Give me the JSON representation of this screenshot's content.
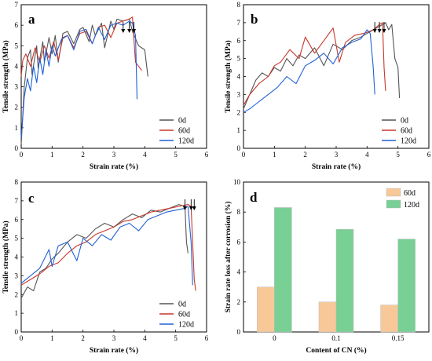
{
  "colors": {
    "0d": "#555555",
    "60d": "#c8372b",
    "120d": "#2060d8",
    "bar_60d": "#f8c898",
    "bar_120d": "#78d094"
  },
  "chart_data": [
    {
      "panel": "a",
      "type": "line",
      "xlabel": "Strain rate (%)",
      "ylabel": "Tensile strength (MPa)",
      "xlim": [
        0,
        6
      ],
      "ylim": [
        0,
        7
      ],
      "xticks": [
        "0",
        "1",
        "2",
        "3",
        "4",
        "5",
        "6"
      ],
      "yticks": [
        "0",
        "1",
        "2",
        "3",
        "4",
        "5",
        "6",
        "7"
      ],
      "legend_position": "bottom-right",
      "arrows_at_x": [
        3.3,
        3.5,
        3.65
      ],
      "series": [
        {
          "name": "0d",
          "x": [
            0,
            0.1,
            0.2,
            0.3,
            0.35,
            0.5,
            0.55,
            0.7,
            0.75,
            0.9,
            1.0,
            1.1,
            1.2,
            1.35,
            1.5,
            1.7,
            1.9,
            2.0,
            2.2,
            2.3,
            2.4,
            2.6,
            2.7,
            2.9,
            3.0,
            3.1,
            3.3,
            3.5,
            3.6,
            3.8,
            4.0,
            4.1
          ],
          "y": [
            0.2,
            3.0,
            4.4,
            4.8,
            3.6,
            5.0,
            3.9,
            5.2,
            4.2,
            5.4,
            4.6,
            5.5,
            4.2,
            5.6,
            5.7,
            5.1,
            5.8,
            5.9,
            5.2,
            6.0,
            5.5,
            6.1,
            4.9,
            6.2,
            5.8,
            6.3,
            6.2,
            6.3,
            5.7,
            5.0,
            4.8,
            3.5
          ]
        },
        {
          "name": "60d",
          "x": [
            0,
            0.05,
            0.15,
            0.3,
            0.45,
            0.6,
            0.75,
            0.9,
            1.05,
            1.2,
            1.35,
            1.5,
            1.7,
            1.9,
            2.1,
            2.3,
            2.5,
            2.7,
            2.9,
            3.1,
            3.3,
            3.5,
            3.6,
            3.7,
            3.9
          ],
          "y": [
            3.5,
            4.3,
            4.6,
            4.0,
            4.9,
            4.2,
            5.0,
            4.4,
            5.2,
            4.3,
            5.4,
            5.5,
            4.9,
            5.6,
            5.7,
            5.1,
            5.9,
            6.0,
            5.4,
            6.1,
            6.2,
            6.3,
            6.4,
            4.2,
            3.8
          ]
        },
        {
          "name": "120d",
          "x": [
            0,
            0.1,
            0.2,
            0.3,
            0.4,
            0.5,
            0.6,
            0.7,
            0.8,
            0.9,
            1.0,
            1.1,
            1.3,
            1.5,
            1.7,
            1.9,
            2.1,
            2.3,
            2.5,
            2.7,
            2.9,
            3.1,
            3.3,
            3.5,
            3.6,
            3.7,
            3.75
          ],
          "y": [
            0.5,
            2.5,
            3.4,
            2.8,
            4.0,
            3.2,
            4.4,
            3.6,
            4.8,
            4.0,
            5.0,
            4.5,
            5.3,
            5.5,
            4.8,
            5.7,
            5.8,
            5.1,
            5.9,
            5.3,
            6.0,
            6.1,
            6.0,
            6.2,
            6.1,
            5.5,
            2.4
          ]
        }
      ]
    },
    {
      "panel": "b",
      "type": "line",
      "xlabel": "Strain rate (%)",
      "ylabel": "Tensile strength (MPa)",
      "xlim": [
        0,
        6
      ],
      "ylim": [
        0,
        8
      ],
      "xticks": [
        "0",
        "1",
        "2",
        "3",
        "4",
        "5",
        "6"
      ],
      "yticks": [
        "0",
        "1",
        "2",
        "3",
        "4",
        "5",
        "6",
        "7",
        "8"
      ],
      "legend_position": "bottom-right",
      "arrows_at_x": [
        4.25,
        4.4,
        4.55
      ],
      "series": [
        {
          "name": "0d",
          "x": [
            0,
            0.2,
            0.4,
            0.6,
            0.8,
            1.0,
            1.2,
            1.4,
            1.6,
            1.8,
            2.0,
            2.3,
            2.6,
            2.9,
            3.2,
            3.5,
            3.8,
            4.1,
            4.4,
            4.6,
            4.7,
            4.8,
            4.9,
            5.0,
            5.05
          ],
          "y": [
            2.2,
            3.0,
            3.8,
            4.2,
            4.0,
            4.5,
            4.3,
            5.0,
            4.6,
            5.2,
            5.0,
            5.6,
            4.6,
            5.8,
            5.5,
            6.0,
            6.2,
            6.5,
            6.8,
            7.0,
            6.6,
            6.9,
            5.0,
            4.5,
            2.8
          ]
        },
        {
          "name": "60d",
          "x": [
            0,
            0.2,
            0.5,
            0.8,
            1.0,
            1.2,
            1.5,
            1.8,
            2.0,
            2.3,
            2.6,
            2.9,
            3.1,
            3.3,
            3.6,
            3.9,
            4.2,
            4.4,
            4.5,
            4.55,
            4.6
          ],
          "y": [
            2.4,
            3.0,
            3.6,
            4.0,
            4.6,
            4.8,
            5.5,
            5.0,
            6.2,
            5.3,
            6.0,
            6.7,
            4.8,
            5.9,
            6.3,
            6.4,
            6.6,
            6.9,
            7.0,
            4.5,
            3.2
          ]
        },
        {
          "name": "120d",
          "x": [
            0,
            0.2,
            0.5,
            0.8,
            1.1,
            1.4,
            1.7,
            2.0,
            2.3,
            2.6,
            2.9,
            3.2,
            3.5,
            3.8,
            4.0,
            4.1,
            4.2,
            4.25
          ],
          "y": [
            2.0,
            2.2,
            2.6,
            3.0,
            3.4,
            4.0,
            3.6,
            4.6,
            4.9,
            5.3,
            4.7,
            5.6,
            5.9,
            6.1,
            6.6,
            6.4,
            4.5,
            3.0
          ]
        }
      ]
    },
    {
      "panel": "c",
      "type": "line",
      "xlabel": "Strain rate (%)",
      "ylabel": "Tensile strength (MPa)",
      "xlim": [
        0,
        6
      ],
      "ylim": [
        0,
        8
      ],
      "xticks": [
        "0",
        "1",
        "2",
        "3",
        "4",
        "5",
        "6"
      ],
      "yticks": [
        "0",
        "1",
        "2",
        "3",
        "4",
        "5",
        "6",
        "7",
        "8"
      ],
      "legend_position": "bottom-right",
      "arrows_at_x": [
        5.3,
        5.5,
        5.6
      ],
      "series": [
        {
          "name": "0d",
          "x": [
            0,
            0.2,
            0.4,
            0.6,
            0.8,
            1.0,
            1.2,
            1.5,
            1.8,
            2.1,
            2.4,
            2.7,
            3.0,
            3.3,
            3.6,
            3.9,
            4.2,
            4.5,
            4.8,
            5.1,
            5.3,
            5.35,
            5.4
          ],
          "y": [
            1.8,
            2.4,
            2.2,
            3.2,
            3.4,
            3.9,
            4.2,
            4.8,
            5.2,
            5.0,
            5.5,
            5.8,
            5.6,
            6.0,
            6.3,
            6.1,
            6.5,
            6.4,
            6.6,
            6.8,
            6.7,
            4.8,
            4.2
          ]
        },
        {
          "name": "60d",
          "x": [
            0,
            0.3,
            0.6,
            0.9,
            1.2,
            1.5,
            1.8,
            2.1,
            2.4,
            2.7,
            3.0,
            3.3,
            3.6,
            3.9,
            4.2,
            4.5,
            4.8,
            5.1,
            5.4,
            5.5,
            5.6,
            5.65
          ],
          "y": [
            2.5,
            2.8,
            3.1,
            3.5,
            3.7,
            4.2,
            4.6,
            4.8,
            5.2,
            5.4,
            5.6,
            5.9,
            6.0,
            6.2,
            6.4,
            6.5,
            6.6,
            6.7,
            6.8,
            6.7,
            2.8,
            2.2
          ]
        },
        {
          "name": "120d",
          "x": [
            0,
            0.3,
            0.6,
            0.9,
            1.0,
            1.2,
            1.5,
            1.8,
            2.0,
            2.3,
            2.6,
            2.9,
            3.2,
            3.5,
            3.8,
            4.1,
            4.4,
            4.7,
            5.0,
            5.3,
            5.4,
            5.5,
            5.55
          ],
          "y": [
            2.6,
            3.0,
            3.4,
            4.4,
            3.5,
            4.6,
            4.8,
            3.8,
            5.0,
            4.6,
            5.2,
            4.9,
            5.6,
            5.8,
            5.4,
            6.0,
            6.2,
            6.4,
            6.5,
            6.6,
            6.7,
            4.8,
            2.5
          ]
        }
      ]
    },
    {
      "panel": "d",
      "type": "bar",
      "xlabel": "Content of CN (%)",
      "ylabel": "Strain rate loss after corrosion (%)",
      "ylim": [
        0,
        10
      ],
      "categories": [
        "0",
        "0.1",
        "0.15"
      ],
      "yticks": [
        "0",
        "2",
        "4",
        "6",
        "8",
        "10"
      ],
      "legend_position": "top-right",
      "series": [
        {
          "name": "60d",
          "values": [
            3.0,
            2.0,
            1.8
          ]
        },
        {
          "name": "120d",
          "values": [
            8.3,
            6.85,
            6.2
          ]
        }
      ]
    }
  ]
}
